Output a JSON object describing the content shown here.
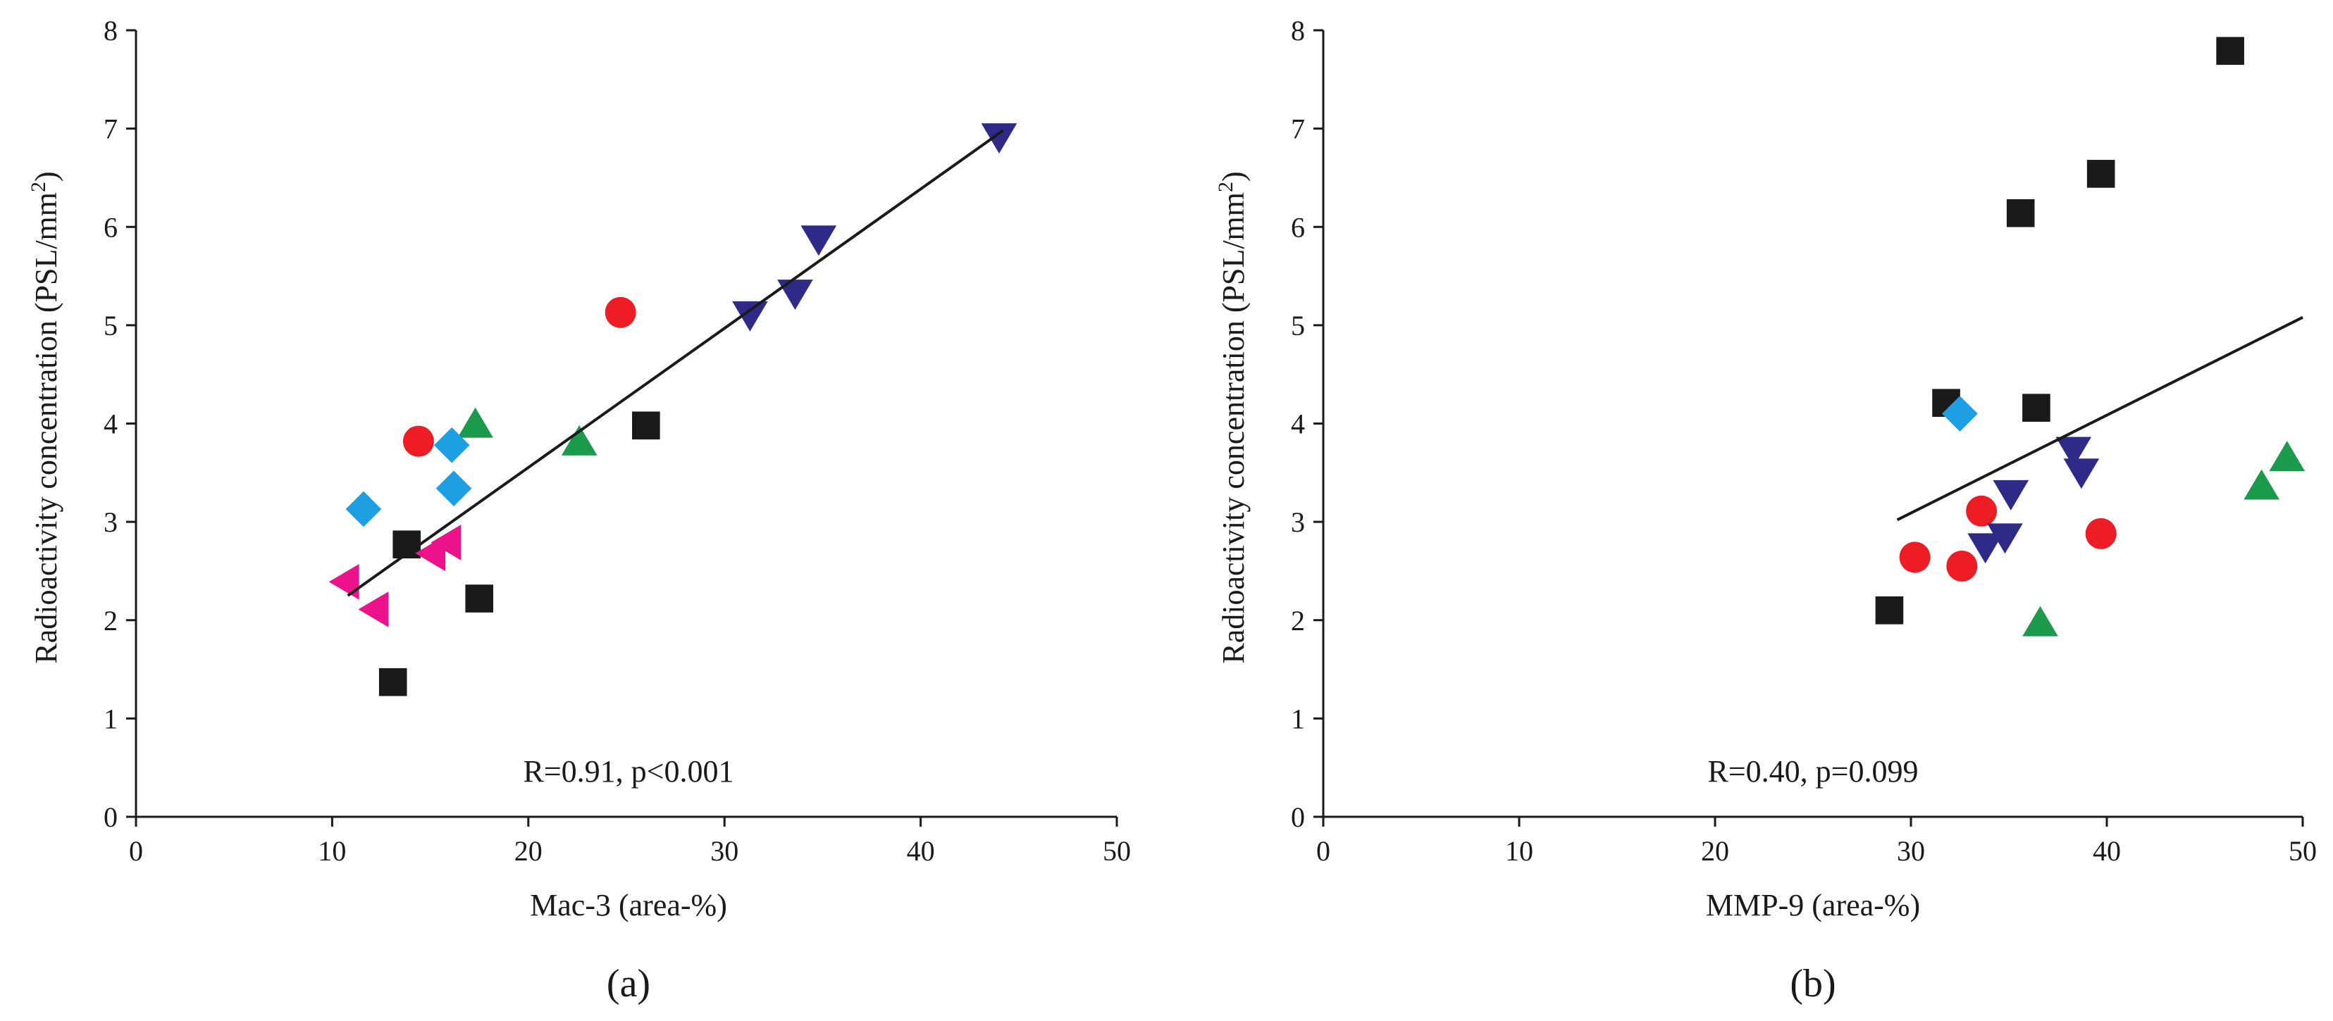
{
  "colors": {
    "black": "#1a1a1a",
    "red": "#ee1c25",
    "green": "#1a9a4a",
    "navy": "#2e2a88",
    "cyan": "#1e9fe4",
    "pink": "#ec128c"
  },
  "chart_data": [
    {
      "type": "scatter",
      "panel_label": "(a)",
      "xlabel": "Mac-3 (area-%)",
      "ylabel": "Radioactivity concentration (PSL/mm",
      "ylabel_sup": "2",
      "ylabel_end": ")",
      "xlim": [
        0,
        50
      ],
      "ylim": [
        0,
        8
      ],
      "xticks": [
        0,
        10,
        20,
        30,
        40,
        50
      ],
      "yticks": [
        0,
        1,
        2,
        3,
        4,
        5,
        6,
        7,
        8
      ],
      "stat_text": "R=0.91, p<0.001",
      "fit_line": {
        "x": [
          10.8,
          44.2
        ],
        "y": [
          2.25,
          6.98
        ]
      },
      "series": [
        {
          "marker": "square",
          "color": "#1a1a1a",
          "points": [
            [
              13.1,
              1.37
            ],
            [
              13.8,
              2.77
            ],
            [
              17.5,
              2.22
            ],
            [
              26.0,
              3.98
            ]
          ]
        },
        {
          "marker": "circle",
          "color": "#ee1c25",
          "points": [
            [
              14.4,
              3.82
            ],
            [
              24.7,
              5.13
            ]
          ]
        },
        {
          "marker": "triangle-up",
          "color": "#1a9a4a",
          "points": [
            [
              17.3,
              3.99
            ],
            [
              22.6,
              3.81
            ]
          ]
        },
        {
          "marker": "triangle-down",
          "color": "#2e2a88",
          "points": [
            [
              31.3,
              5.11
            ],
            [
              33.6,
              5.33
            ],
            [
              34.8,
              5.88
            ],
            [
              44.0,
              6.92
            ]
          ]
        },
        {
          "marker": "diamond",
          "color": "#1e9fe4",
          "points": [
            [
              11.6,
              3.13
            ],
            [
              16.1,
              3.78
            ],
            [
              16.2,
              3.34
            ]
          ]
        },
        {
          "marker": "triangle-left",
          "color": "#ec128c",
          "points": [
            [
              10.7,
              2.39
            ],
            [
              12.2,
              2.11
            ],
            [
              15.1,
              2.68
            ],
            [
              15.9,
              2.79
            ]
          ]
        }
      ]
    },
    {
      "type": "scatter",
      "panel_label": "(b)",
      "xlabel": "MMP-9 (area-%)",
      "ylabel": "Radioactivity concentration (PSL/mm",
      "ylabel_sup": "2",
      "ylabel_end": ")",
      "xlim": [
        0,
        50
      ],
      "ylim": [
        0,
        8
      ],
      "xticks": [
        0,
        10,
        20,
        30,
        40,
        50
      ],
      "yticks": [
        0,
        1,
        2,
        3,
        4,
        5,
        6,
        7,
        8
      ],
      "stat_text": "R=0.40, p=0.099",
      "fit_line": {
        "x": [
          29.3,
          50.0
        ],
        "y": [
          3.02,
          5.08
        ]
      },
      "series": [
        {
          "marker": "square",
          "color": "#1a1a1a",
          "points": [
            [
              28.9,
              2.1
            ],
            [
              31.8,
              4.21
            ],
            [
              35.6,
              6.14
            ],
            [
              36.4,
              4.16
            ],
            [
              39.7,
              6.54
            ],
            [
              46.3,
              7.79
            ]
          ]
        },
        {
          "marker": "circle",
          "color": "#ee1c25",
          "points": [
            [
              30.2,
              2.64
            ],
            [
              32.6,
              2.55
            ],
            [
              33.6,
              3.11
            ],
            [
              39.7,
              2.88
            ]
          ]
        },
        {
          "marker": "triangle-up",
          "color": "#1a9a4a",
          "points": [
            [
              36.6,
              1.97
            ],
            [
              47.9,
              3.36
            ],
            [
              49.2,
              3.65
            ]
          ]
        },
        {
          "marker": "triangle-down",
          "color": "#2e2a88",
          "points": [
            [
              33.8,
              2.75
            ],
            [
              34.8,
              2.85
            ],
            [
              35.1,
              3.29
            ],
            [
              38.3,
              3.73
            ],
            [
              38.7,
              3.51
            ]
          ]
        },
        {
          "marker": "diamond",
          "color": "#1e9fe4",
          "points": [
            [
              32.5,
              4.1
            ]
          ]
        }
      ]
    }
  ]
}
